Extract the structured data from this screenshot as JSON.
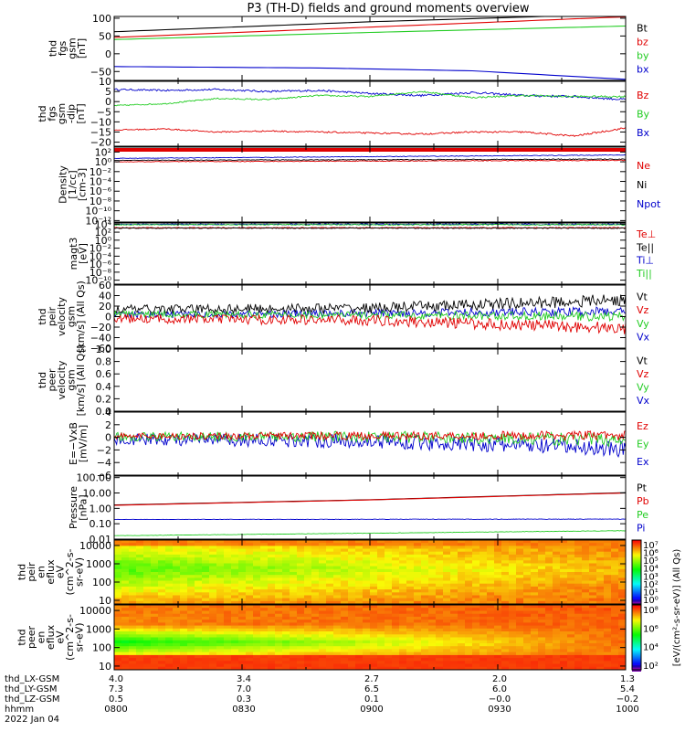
{
  "title": "P3 (TH-D) fields and ground moments overview",
  "colors": {
    "black": "#000000",
    "red": "#e00000",
    "green": "#22cc22",
    "blue": "#0000cc",
    "axis": "#000000"
  },
  "chart_data": [
    {
      "id": "fgs",
      "type": "line",
      "ylabel": [
        "thd",
        "fgs",
        "gsm",
        "[nT]"
      ],
      "ylim": [
        -75,
        105
      ],
      "ticks": [
        100,
        50,
        0,
        -50
      ],
      "tick_labels": [
        "100",
        "50",
        "0",
        "−50"
      ],
      "legend": [
        {
          "name": "Bt",
          "color": "black"
        },
        {
          "name": "bz",
          "color": "red"
        },
        {
          "name": "by",
          "color": "green"
        },
        {
          "name": "bx",
          "color": "blue"
        }
      ],
      "series": [
        {
          "name": "Bt",
          "color": "black",
          "x": [
            0,
            0.5,
            1
          ],
          "values": [
            62,
            90,
            112
          ],
          "noise": 0
        },
        {
          "name": "bz",
          "color": "red",
          "x": [
            0,
            0.5,
            1
          ],
          "values": [
            46,
            75,
            104
          ],
          "noise": 0
        },
        {
          "name": "by",
          "color": "green",
          "x": [
            0,
            0.5,
            1
          ],
          "values": [
            40,
            60,
            78
          ],
          "noise": 0
        },
        {
          "name": "bx",
          "color": "blue",
          "x": [
            0,
            0.4,
            0.7,
            1
          ],
          "values": [
            -36,
            -40,
            -48,
            -72
          ],
          "noise": 0
        }
      ]
    },
    {
      "id": "fgs_dsl",
      "type": "line",
      "ylabel": [
        "thd",
        "fgs",
        "gsm",
        "-dip",
        "[nT]"
      ],
      "ylim": [
        -22,
        10
      ],
      "ticks": [
        10,
        5,
        0,
        -5,
        -10,
        -15,
        -20
      ],
      "tick_labels": [
        "10",
        "5",
        "0",
        "−5",
        "−10",
        "−15",
        "−20"
      ],
      "legend": [
        {
          "name": "Bz",
          "color": "red"
        },
        {
          "name": "By",
          "color": "green"
        },
        {
          "name": "Bx",
          "color": "blue"
        }
      ],
      "series": [
        {
          "name": "Bx",
          "color": "blue",
          "x": [
            0,
            0.1,
            0.2,
            0.3,
            0.4,
            0.5,
            0.6,
            0.7,
            0.8,
            0.9,
            1
          ],
          "values": [
            6,
            5.5,
            6,
            5,
            5.5,
            4,
            3,
            4.5,
            3,
            2.5,
            1
          ],
          "noise": 0.4
        },
        {
          "name": "By",
          "color": "green",
          "x": [
            0,
            0.1,
            0.2,
            0.3,
            0.4,
            0.5,
            0.6,
            0.7,
            0.8,
            0.9,
            1
          ],
          "values": [
            -2,
            -1,
            1.5,
            1,
            3,
            2.5,
            5,
            2,
            3,
            2.5,
            2.5
          ],
          "noise": 0.3
        },
        {
          "name": "Bz",
          "color": "red",
          "x": [
            0,
            0.1,
            0.2,
            0.3,
            0.4,
            0.5,
            0.6,
            0.7,
            0.8,
            0.9,
            1
          ],
          "values": [
            -14,
            -13.5,
            -15,
            -14.5,
            -15,
            -15.5,
            -16,
            -15,
            -15,
            -17,
            -13
          ],
          "noise": 0.3
        }
      ]
    },
    {
      "id": "density",
      "type": "line",
      "log": true,
      "ylabel": [
        "Density",
        "[1/cc]",
        "[cm-3]"
      ],
      "ylim": [
        -12.3,
        3
      ],
      "ticks": [
        2,
        0,
        -2,
        -4,
        -6,
        -8,
        -10,
        -12
      ],
      "tick_labels": [
        "10²",
        "10⁰",
        "10⁻²",
        "10⁻⁴",
        "10⁻⁶",
        "10⁻⁸",
        "10⁻¹⁰",
        "10⁻¹²"
      ],
      "legend": [
        {
          "name": "Ne",
          "color": "red"
        },
        {
          "name": "Ni",
          "color": "black"
        },
        {
          "name": "Npot",
          "color": "blue"
        }
      ],
      "series": [
        {
          "name": "Npot",
          "color": "blue",
          "x": [
            0,
            1
          ],
          "values": [
            0.7,
            1.4
          ],
          "noise": 0.05
        },
        {
          "name": "Ni",
          "color": "black",
          "x": [
            0,
            1
          ],
          "values": [
            0.3,
            0.55
          ],
          "noise": 0.06
        },
        {
          "name": "Ne",
          "color": "red",
          "x": [
            0,
            1
          ],
          "values": [
            0.0,
            0.3
          ],
          "noise": 0.06
        }
      ]
    },
    {
      "id": "temp",
      "type": "line",
      "log": true,
      "ylabel": [
        "magt3",
        "[eV]"
      ],
      "ylim": [
        -11,
        4.3
      ],
      "ticks": [
        4,
        2,
        0,
        -2,
        -4,
        -6,
        -8,
        -10
      ],
      "tick_labels": [
        "10⁴",
        "10²",
        "10⁰",
        "10⁻²",
        "10⁻⁴",
        "10⁻⁶",
        "10⁻⁸",
        "10⁻¹⁰"
      ],
      "legend": [
        {
          "name": "Te⊥",
          "color": "red"
        },
        {
          "name": "Te||",
          "color": "black"
        },
        {
          "name": "Ti⊥",
          "color": "blue"
        },
        {
          "name": "Ti||",
          "color": "green"
        }
      ],
      "series": [
        {
          "name": "Ti⊥",
          "color": "blue",
          "x": [
            0,
            1
          ],
          "values": [
            3.95,
            3.95
          ],
          "noise": 0.12
        },
        {
          "name": "Ti||",
          "color": "green",
          "x": [
            0,
            1
          ],
          "values": [
            3.85,
            3.85
          ],
          "noise": 0.1
        },
        {
          "name": "Te⊥",
          "color": "red",
          "x": [
            0,
            1
          ],
          "values": [
            3.1,
            3.1
          ],
          "noise": 0.08
        },
        {
          "name": "Te||",
          "color": "black",
          "x": [
            0,
            1
          ],
          "values": [
            3.0,
            3.0
          ],
          "noise": 0.08
        }
      ]
    },
    {
      "id": "vel_i",
      "type": "line",
      "ylabel": [
        "thd",
        "peir",
        "velocity",
        "gsm",
        "[km/s] (All Qs)"
      ],
      "ylim": [
        -60,
        60
      ],
      "ticks": [
        60,
        40,
        20,
        0,
        -20,
        -40,
        -60
      ],
      "tick_labels": [
        "60",
        "40",
        "20",
        "0",
        "−20",
        "−40",
        "−60"
      ],
      "legend": [
        {
          "name": "Vt",
          "color": "black"
        },
        {
          "name": "Vz",
          "color": "red"
        },
        {
          "name": "Vy",
          "color": "green"
        },
        {
          "name": "Vx",
          "color": "blue"
        }
      ],
      "series": [
        {
          "name": "Vx",
          "color": "blue",
          "x": [
            0,
            1
          ],
          "values": [
            3,
            10
          ],
          "noise": 6
        },
        {
          "name": "Vt",
          "color": "black",
          "x": [
            0,
            0.5,
            1
          ],
          "values": [
            14,
            16,
            32
          ],
          "noise": 8
        },
        {
          "name": "Vy",
          "color": "green",
          "x": [
            0,
            1
          ],
          "values": [
            5,
            0
          ],
          "noise": 6
        },
        {
          "name": "Vz",
          "color": "red",
          "x": [
            0,
            0.5,
            1
          ],
          "values": [
            -4,
            -7,
            -22
          ],
          "noise": 8
        }
      ]
    },
    {
      "id": "vel_e",
      "type": "line",
      "ylabel": [
        "thd",
        "peer",
        "velocity",
        "gsm",
        "[km/s] (All Qs)"
      ],
      "ylim": [
        0,
        1
      ],
      "ticks": [
        1,
        0.8,
        0.6,
        0.4,
        0.2,
        0.0
      ],
      "tick_labels": [
        "1.0",
        "0.8",
        "0.6",
        "0.4",
        "0.2",
        "0.0"
      ],
      "legend": [
        {
          "name": "Vt",
          "color": "black"
        },
        {
          "name": "Vz",
          "color": "red"
        },
        {
          "name": "Vy",
          "color": "green"
        },
        {
          "name": "Vx",
          "color": "blue"
        }
      ],
      "series": []
    },
    {
      "id": "efield",
      "type": "line",
      "ylabel": [
        "E=−VxB",
        "[mV/m]"
      ],
      "ylim": [
        -6,
        4
      ],
      "ticks": [
        4,
        2,
        0,
        -2,
        -4,
        -6
      ],
      "tick_labels": [
        "4",
        "2",
        "0",
        "−2",
        "−4",
        "−6"
      ],
      "legend": [
        {
          "name": "Ez",
          "color": "red"
        },
        {
          "name": "Ey",
          "color": "green"
        },
        {
          "name": "Ex",
          "color": "blue"
        }
      ],
      "series": [
        {
          "name": "Ex",
          "color": "blue",
          "x": [
            0,
            0.5,
            1
          ],
          "values": [
            -0.3,
            -0.6,
            -1.8
          ],
          "noise": 0.9
        },
        {
          "name": "Ey",
          "color": "green",
          "x": [
            0,
            0.5,
            1
          ],
          "values": [
            0.1,
            0.1,
            -0.4
          ],
          "noise": 0.7
        },
        {
          "name": "Ez",
          "color": "red",
          "x": [
            0,
            1
          ],
          "values": [
            0.2,
            0.3
          ],
          "noise": 0.5
        }
      ]
    },
    {
      "id": "pressure",
      "type": "line",
      "log": true,
      "ylabel": [
        "Pressure",
        "[nPa]"
      ],
      "ylim": [
        -2,
        2.1
      ],
      "ticks": [
        2,
        1,
        0,
        -1,
        -2
      ],
      "tick_labels": [
        "100.00",
        "10.00",
        "1.00",
        "0.10",
        "0.01"
      ],
      "legend": [
        {
          "name": "Pt",
          "color": "black"
        },
        {
          "name": "Pb",
          "color": "red"
        },
        {
          "name": "Pe",
          "color": "green"
        },
        {
          "name": "Pi",
          "color": "blue"
        }
      ],
      "series": [
        {
          "name": "Pt",
          "color": "black",
          "x": [
            0,
            0.5,
            1
          ],
          "values": [
            0.22,
            0.56,
            1.02
          ],
          "noise": 0
        },
        {
          "name": "Pb",
          "color": "red",
          "x": [
            0,
            0.5,
            1
          ],
          "values": [
            0.2,
            0.55,
            1.0
          ],
          "noise": 0
        },
        {
          "name": "Pi",
          "color": "blue",
          "x": [
            0,
            1
          ],
          "values": [
            -0.72,
            -0.7
          ],
          "noise": 0.01
        },
        {
          "name": "Pe",
          "color": "green",
          "x": [
            0,
            1
          ],
          "values": [
            -1.78,
            -1.45
          ],
          "noise": 0.01
        }
      ]
    },
    {
      "id": "spec_i",
      "type": "heatmap",
      "ylabel": [
        "thd",
        "peir",
        "en",
        "eflux",
        "eV",
        "(cm^2-s-",
        "sr-eV)"
      ],
      "ylim": [
        0.8,
        4.3
      ],
      "ticks": [
        4,
        3,
        2,
        1
      ],
      "tick_labels": [
        "10000",
        "1000",
        "100",
        "10"
      ],
      "colorbar_ticks": [
        "10⁷",
        "10⁶",
        "10⁵",
        "10⁴",
        "10³",
        "10²",
        "10¹",
        "10⁰"
      ]
    },
    {
      "id": "spec_e",
      "type": "heatmap",
      "ylabel": [
        "thd",
        "peer",
        "en",
        "eflux",
        "eV",
        "(cm^2-s-",
        "sr-eV)"
      ],
      "ylim": [
        0.8,
        4.3
      ],
      "ticks": [
        4,
        3,
        2,
        1
      ],
      "tick_labels": [
        "10000",
        "1000",
        "100",
        "10"
      ],
      "colorbar_ticks": [
        "10⁸",
        "10⁶",
        "10⁴",
        "10²"
      ]
    }
  ],
  "colorbar_label_i": "[eV/(cm²-s-sr-eV)] (All Qs)",
  "colorbar_label_e": "[eV/(cm²-s-sr-eV)] (All Qs)",
  "xaxis": {
    "rows": [
      {
        "name": "thd_LX-GSM",
        "values": [
          "4.0",
          "3.4",
          "2.7",
          "2.0",
          "1.3"
        ]
      },
      {
        "name": "thd_LY-GSM",
        "values": [
          "7.3",
          "7.0",
          "6.5",
          "6.0",
          "5.4"
        ]
      },
      {
        "name": "thd_LZ-GSM",
        "values": [
          "0.5",
          "0.3",
          "0.1",
          "−0.0",
          "−0.2"
        ]
      },
      {
        "name": "hhmm",
        "values": [
          "0800",
          "0830",
          "0900",
          "0930",
          "1000"
        ]
      }
    ],
    "date": "2022 Jan 04"
  }
}
